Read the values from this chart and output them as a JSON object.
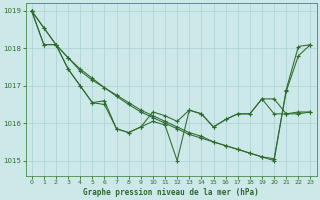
{
  "xlabel": "Graphe pression niveau de la mer (hPa)",
  "bg_color": "#cce8e8",
  "grid_color": "#aacccc",
  "line_color": "#2d6a2d",
  "marker": "+",
  "ylim": [
    1014.6,
    1019.2
  ],
  "yticks": [
    1015,
    1016,
    1017,
    1018,
    1019
  ],
  "xticks": [
    0,
    1,
    2,
    3,
    4,
    5,
    6,
    7,
    8,
    9,
    10,
    11,
    12,
    13,
    14,
    15,
    16,
    17,
    18,
    19,
    20,
    21,
    22,
    23
  ],
  "lines": [
    [
      1019.0,
      1018.55,
      1018.1,
      1017.75,
      1017.4,
      1017.15,
      1016.95,
      1016.75,
      1016.55,
      1016.35,
      1016.2,
      1016.05,
      1015.9,
      1015.75,
      1015.65,
      1015.5,
      1015.4,
      1015.3,
      1015.2,
      1015.1,
      1015.0,
      1016.9,
      1018.05,
      1018.1
    ],
    [
      1019.0,
      1018.55,
      1018.1,
      1017.75,
      1017.45,
      1017.2,
      1016.95,
      1016.72,
      1016.5,
      1016.3,
      1016.15,
      1016.0,
      1015.85,
      1015.7,
      1015.6,
      1015.5,
      1015.4,
      1015.3,
      1015.2,
      1015.1,
      1015.05,
      1016.85,
      1017.8,
      1018.1
    ],
    [
      1019.0,
      1018.1,
      1018.1,
      1017.45,
      1017.0,
      1016.55,
      1016.6,
      1015.85,
      1015.75,
      1015.9,
      1016.05,
      1015.95,
      1015.0,
      1016.35,
      1016.25,
      1015.9,
      1016.1,
      1016.25,
      1016.25,
      1016.65,
      1016.65,
      1016.25,
      1016.3,
      1016.3
    ],
    [
      1019.0,
      1018.1,
      1018.1,
      1017.45,
      1017.0,
      1016.55,
      1016.5,
      1015.85,
      1015.75,
      1015.9,
      1016.3,
      1016.2,
      1016.05,
      1016.35,
      1016.25,
      1015.9,
      1016.1,
      1016.25,
      1016.25,
      1016.65,
      1016.25,
      1016.25,
      1016.25,
      1016.3
    ]
  ]
}
